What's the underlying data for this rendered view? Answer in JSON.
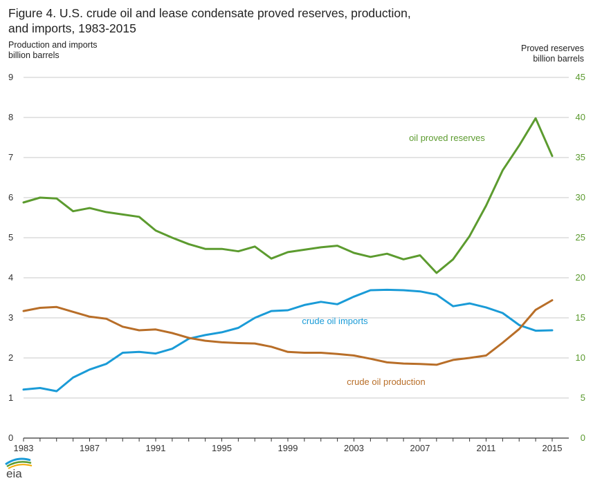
{
  "title_lines": [
    "Figure 4. U.S. crude oil and lease condensate proved reserves, production,",
    "and imports, 1983-2015"
  ],
  "left_axis_title": [
    "Production and imports",
    "billion barrels"
  ],
  "right_axis_title": [
    "Proved reserves",
    "billion barrels"
  ],
  "logo_text": "eia",
  "colors": {
    "reserves": "#5c9b2f",
    "imports": "#1a9bd7",
    "production": "#b86e28",
    "grid": "#c8c8c8",
    "axis": "#333333"
  },
  "chart_data": {
    "type": "line",
    "x": [
      1983,
      1984,
      1985,
      1986,
      1987,
      1988,
      1989,
      1990,
      1991,
      1992,
      1993,
      1994,
      1995,
      1996,
      1997,
      1998,
      1999,
      2000,
      2001,
      2002,
      2003,
      2004,
      2005,
      2006,
      2007,
      2008,
      2009,
      2010,
      2011,
      2012,
      2013,
      2014,
      2015
    ],
    "x_ticks": [
      "1983",
      "1987",
      "1991",
      "1995",
      "1999",
      "2003",
      "2007",
      "2011",
      "2015"
    ],
    "left_ticks": [
      "0",
      "1",
      "2",
      "3",
      "4",
      "5",
      "6",
      "7",
      "8",
      "9"
    ],
    "right_ticks": [
      "0",
      "5",
      "10",
      "15",
      "20",
      "25",
      "30",
      "35",
      "40",
      "45"
    ],
    "ylim_left": [
      0,
      9
    ],
    "ylim_right": [
      0,
      45
    ],
    "grid": true,
    "series": [
      {
        "name": "oil proved reserves",
        "axis": "right",
        "color": "#5c9b2f",
        "values": [
          29.4,
          30.0,
          29.9,
          28.3,
          28.7,
          28.2,
          27.9,
          27.6,
          25.9,
          25.0,
          24.2,
          23.6,
          23.6,
          23.3,
          23.9,
          22.4,
          23.2,
          23.5,
          23.8,
          24.0,
          23.1,
          22.6,
          23.0,
          22.3,
          22.8,
          20.6,
          22.3,
          25.2,
          29.0,
          33.4,
          36.5,
          39.9,
          35.2
        ]
      },
      {
        "name": "crude oil imports",
        "axis": "left",
        "color": "#1a9bd7",
        "values": [
          1.21,
          1.25,
          1.17,
          1.51,
          1.71,
          1.85,
          2.13,
          2.15,
          2.11,
          2.23,
          2.48,
          2.57,
          2.64,
          2.75,
          3.0,
          3.17,
          3.19,
          3.32,
          3.4,
          3.34,
          3.53,
          3.69,
          3.7,
          3.69,
          3.66,
          3.58,
          3.29,
          3.36,
          3.26,
          3.12,
          2.82,
          2.68,
          2.69
        ]
      },
      {
        "name": "crude oil production",
        "axis": "left",
        "color": "#b86e28",
        "values": [
          3.17,
          3.25,
          3.27,
          3.15,
          3.03,
          2.98,
          2.78,
          2.69,
          2.71,
          2.62,
          2.5,
          2.43,
          2.39,
          2.37,
          2.36,
          2.28,
          2.15,
          2.13,
          2.13,
          2.1,
          2.06,
          1.98,
          1.89,
          1.86,
          1.85,
          1.83,
          1.95,
          2.0,
          2.06,
          2.38,
          2.72,
          3.2,
          3.44
        ]
      }
    ],
    "annotations": [
      {
        "text": "oil proved reserves",
        "series": "oil proved reserves"
      },
      {
        "text": "crude oil imports",
        "series": "crude oil imports"
      },
      {
        "text": "crude oil production",
        "series": "crude oil production"
      }
    ]
  }
}
